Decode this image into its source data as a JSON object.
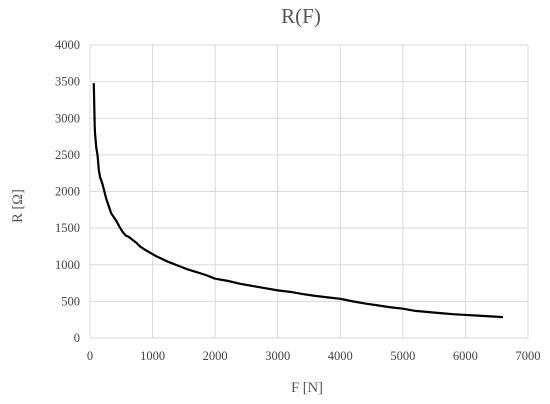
{
  "chart_data": {
    "type": "line",
    "title": "R(F)",
    "xlabel": "F [N]",
    "ylabel": "R [Ω]",
    "xlim": [
      0,
      7000
    ],
    "ylim": [
      0,
      4000
    ],
    "xticks": [
      0,
      1000,
      2000,
      3000,
      4000,
      5000,
      6000,
      7000
    ],
    "yticks": [
      0,
      500,
      1000,
      1500,
      2000,
      2500,
      3000,
      3500,
      4000
    ],
    "x_tick_labels": [
      "0",
      "1000",
      "2000",
      "3000",
      "4000",
      "5000",
      "6000",
      "7000"
    ],
    "y_tick_labels": [
      "0",
      "500",
      "1000",
      "1500",
      "2000",
      "2500",
      "3000",
      "3500",
      "4000"
    ],
    "grid": true,
    "legend": "none",
    "series": [
      {
        "color": "#000000",
        "x": [
          60,
          65,
          70,
          75,
          80,
          90,
          100,
          120,
          140,
          160,
          180,
          200,
          230,
          260,
          300,
          340,
          380,
          420,
          470,
          520,
          570,
          620,
          680,
          740,
          800,
          870,
          950,
          1050,
          1150,
          1250,
          1400,
          1550,
          1700,
          1850,
          2000,
          2200,
          2400,
          2600,
          2800,
          3000,
          3200,
          3400,
          3600,
          3800,
          4000,
          4200,
          4400,
          4600,
          4800,
          5000,
          5200,
          5400,
          5600,
          5800,
          6000,
          6200,
          6400,
          6600
        ],
        "y": [
          3480,
          3300,
          3100,
          2900,
          2800,
          2700,
          2600,
          2500,
          2300,
          2200,
          2150,
          2100,
          2000,
          1900,
          1800,
          1700,
          1650,
          1600,
          1520,
          1450,
          1400,
          1380,
          1340,
          1300,
          1250,
          1210,
          1170,
          1120,
          1080,
          1040,
          990,
          940,
          900,
          860,
          810,
          780,
          740,
          710,
          680,
          650,
          630,
          600,
          575,
          555,
          535,
          500,
          470,
          445,
          420,
          400,
          370,
          355,
          340,
          325,
          315,
          305,
          295,
          285
        ]
      }
    ]
  }
}
